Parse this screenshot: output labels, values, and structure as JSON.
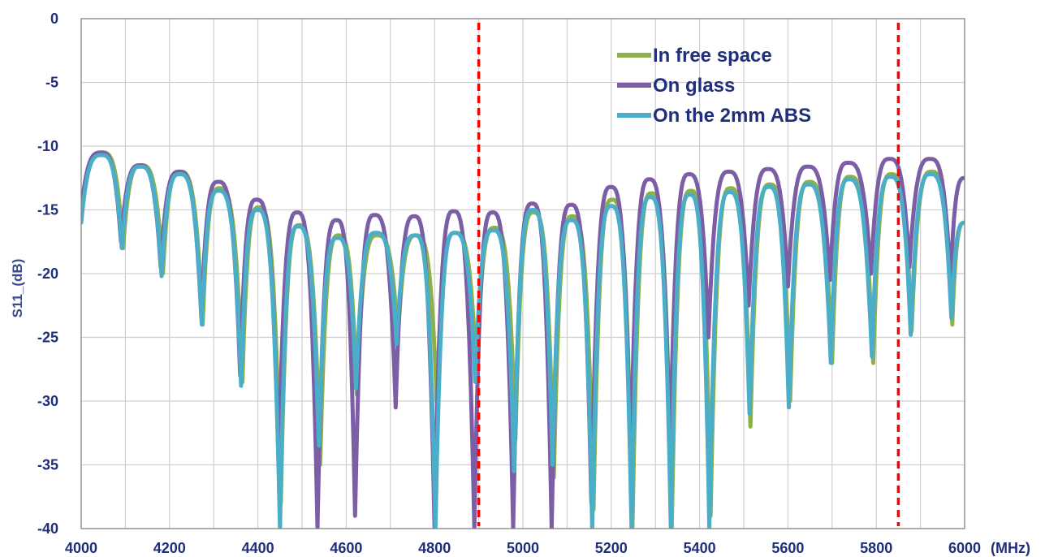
{
  "chart_data": {
    "type": "line",
    "title": "",
    "xlabel": "",
    "x_unit": "(MHz)",
    "ylabel": "S11_(dB)",
    "xlim": [
      4000,
      6000
    ],
    "ylim": [
      -40,
      0
    ],
    "xticks": [
      4000,
      4200,
      4400,
      4600,
      4800,
      5000,
      5200,
      5400,
      5600,
      5800,
      6000
    ],
    "yticks": [
      0,
      -5,
      -10,
      -15,
      -20,
      -25,
      -30,
      -35,
      -40
    ],
    "x_minor_step": 100,
    "grid": true,
    "legend_position": "top-right",
    "markers_vertical_lines": [
      {
        "x": 4900,
        "color": "#ff0000",
        "style": "dashed"
      },
      {
        "x": 5850,
        "color": "#ff0000",
        "style": "dashed"
      }
    ],
    "series": [
      {
        "name": "In free space",
        "color": "#8db04a",
        "x": [
          4000,
          4048,
          4095,
          4136,
          4185,
          4224,
          4275,
          4313,
          4365,
          4402,
          4452,
          4493,
          4541,
          4583,
          4624,
          4670,
          4717,
          4759,
          4805,
          4847,
          4895,
          4936,
          4983,
          5024,
          5070,
          5112,
          5160,
          5202,
          5248,
          5291,
          5337,
          5380,
          5425,
          5470,
          5515,
          5559,
          5605,
          5648,
          5700,
          5740,
          5793,
          5834,
          5880,
          5925,
          5972,
          6000
        ],
        "y": [
          -15.5,
          -10.5,
          -18.0,
          -11.5,
          -20.0,
          -12.0,
          -24.0,
          -13.3,
          -28.5,
          -14.8,
          -38.0,
          -16.2,
          -35.0,
          -17.0,
          -29.5,
          -17.0,
          -25.0,
          -17.0,
          -30.0,
          -16.8,
          -28.0,
          -16.4,
          -33.0,
          -15.2,
          -36.0,
          -15.5,
          -38.5,
          -14.2,
          -40.0,
          -13.7,
          -40.0,
          -13.5,
          -39.0,
          -13.3,
          -32.0,
          -13.0,
          -30.0,
          -12.8,
          -27.0,
          -12.4,
          -27.0,
          -12.2,
          -24.5,
          -12.0,
          -24.0,
          -16.0
        ]
      },
      {
        "name": "On glass",
        "color": "#7b5ea5",
        "x": [
          4000,
          4045,
          4090,
          4133,
          4180,
          4222,
          4272,
          4310,
          4360,
          4397,
          4447,
          4489,
          4535,
          4578,
          4620,
          4664,
          4712,
          4754,
          4800,
          4843,
          4890,
          4931,
          4978,
          5021,
          5065,
          5109,
          5155,
          5199,
          5244,
          5286,
          5333,
          5376,
          5420,
          5466,
          5511,
          5555,
          5600,
          5645,
          5695,
          5736,
          5788,
          5830,
          5875,
          5922,
          5968,
          6000
        ],
        "y": [
          -15.0,
          -10.5,
          -17.5,
          -11.5,
          -19.5,
          -12.0,
          -23.5,
          -12.8,
          -28.0,
          -14.2,
          -35.0,
          -15.2,
          -40.0,
          -15.8,
          -39.0,
          -15.4,
          -30.5,
          -15.5,
          -40.0,
          -15.1,
          -40.0,
          -15.2,
          -40.0,
          -14.5,
          -40.0,
          -14.6,
          -38.0,
          -13.2,
          -35.0,
          -12.6,
          -34.0,
          -12.2,
          -25.0,
          -12.0,
          -22.5,
          -11.8,
          -21.0,
          -11.6,
          -20.5,
          -11.3,
          -20.0,
          -11.0,
          -19.5,
          -11.0,
          -20.5,
          -12.5
        ]
      },
      {
        "name": "On the 2mm ABS",
        "color": "#4aaec8",
        "x": [
          4000,
          4046,
          4092,
          4134,
          4182,
          4223,
          4273,
          4311,
          4362,
          4399,
          4450,
          4491,
          4538,
          4580,
          4622,
          4667,
          4714,
          4756,
          4802,
          4845,
          4892,
          4933,
          4980,
          5022,
          5067,
          5110,
          5157,
          5200,
          5246,
          5288,
          5335,
          5378,
          5422,
          5468,
          5513,
          5557,
          5602,
          5646,
          5697,
          5738,
          5790,
          5832,
          5878,
          5923,
          5970,
          6000
        ],
        "y": [
          -16.0,
          -10.7,
          -18.0,
          -11.6,
          -20.2,
          -12.2,
          -24.0,
          -13.5,
          -28.8,
          -15.0,
          -40.0,
          -16.3,
          -33.5,
          -17.2,
          -29.0,
          -16.8,
          -25.5,
          -17.0,
          -40.0,
          -16.8,
          -28.5,
          -16.6,
          -35.5,
          -15.0,
          -35.0,
          -15.8,
          -40.0,
          -14.7,
          -40.0,
          -14.0,
          -40.0,
          -13.8,
          -40.0,
          -13.6,
          -31.0,
          -13.2,
          -30.5,
          -13.0,
          -27.0,
          -12.6,
          -26.5,
          -12.4,
          -24.8,
          -12.2,
          -23.5,
          -16.0
        ]
      }
    ]
  }
}
